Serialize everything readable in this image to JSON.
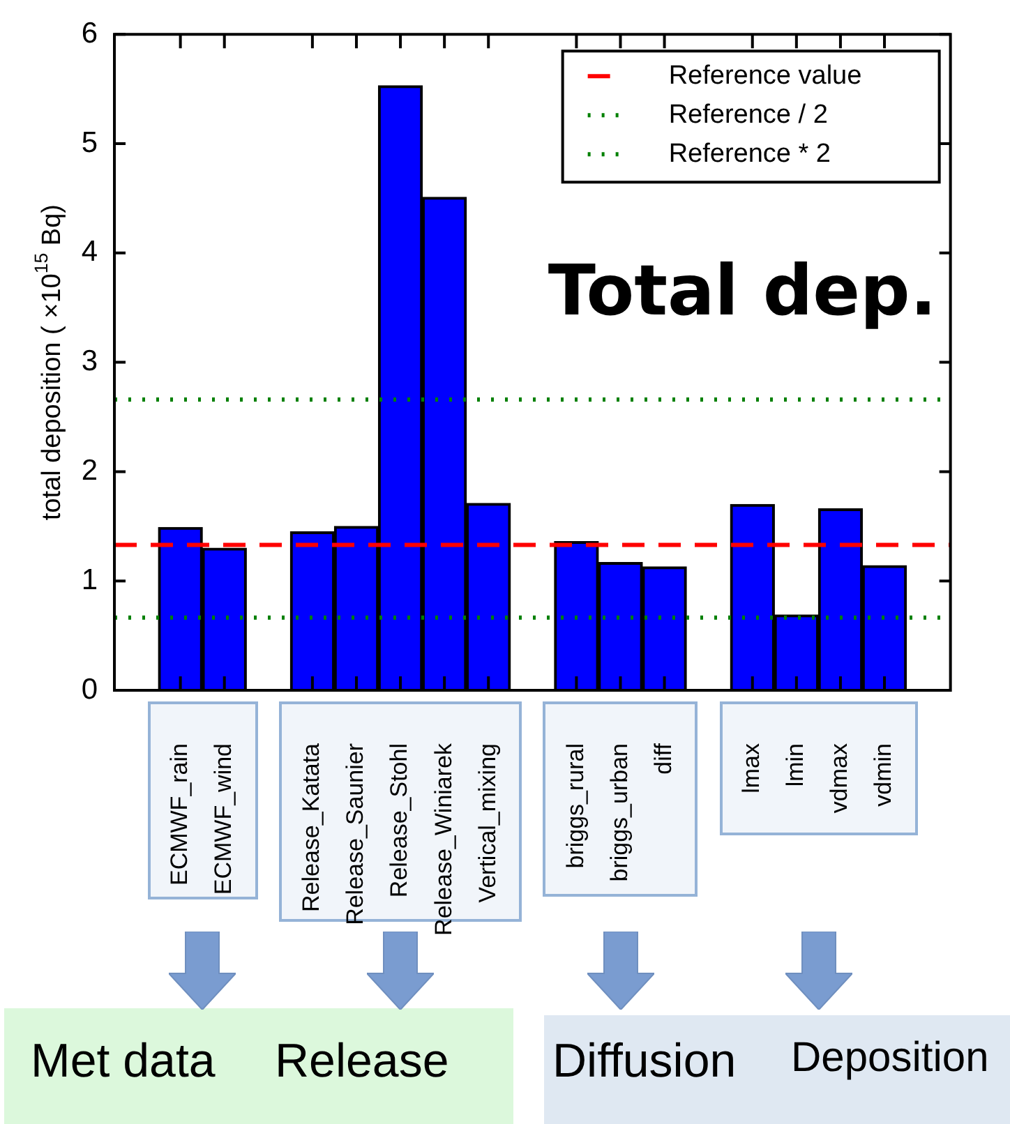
{
  "chart_data": {
    "type": "bar",
    "ylabel": "total deposition ( ×10$^{15}$ Bq)",
    "categories": [
      null,
      "ECMWF_rain",
      "ECMWF_wind",
      null,
      "Release_Katata",
      "Release_Saunier",
      "Release_Stohl",
      "Release_Winiarek",
      "Vertical_mixing",
      null,
      "briggs_rural",
      "briggs_urban",
      "diff",
      null,
      "lmax",
      "lmin",
      "vdmax",
      "vdmin",
      null
    ],
    "values": [
      null,
      1.49,
      1.3,
      null,
      1.45,
      1.5,
      5.53,
      4.51,
      1.71,
      null,
      1.36,
      1.17,
      1.13,
      null,
      1.7,
      0.69,
      1.66,
      1.14,
      null
    ],
    "color": "#0000ff",
    "ylim": [
      0,
      6
    ],
    "yticks": [
      0,
      1,
      2,
      3,
      4,
      5,
      6
    ],
    "grid": false,
    "legend": "top right",
    "ref_lines": [
      {
        "axis": "y",
        "value": 1.33,
        "label": "Reference value",
        "color": "#ff0000",
        "line_style": "dashed"
      },
      {
        "axis": "y",
        "value": 0.665,
        "label": "Reference / 2",
        "color": "#008000",
        "line_style": "dotted"
      },
      {
        "axis": "y",
        "value": 2.66,
        "label": "Reference * 2",
        "color": "#008000",
        "line_style": "dotted"
      }
    ],
    "annotations": [
      "Total dep.",
      "Met data",
      "Release",
      "Diffusion",
      "Deposition"
    ]
  }
}
